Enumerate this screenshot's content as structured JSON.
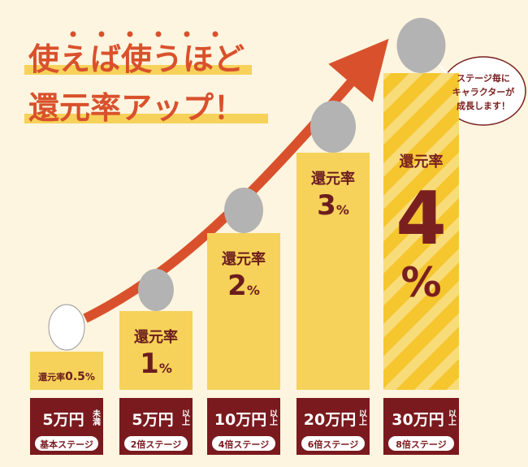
{
  "title": {
    "line1": "使えば使うほど",
    "line2": "還元率アップ！"
  },
  "bubble": {
    "lines": [
      "ステージ毎に",
      "キャラクターが",
      "成長します！"
    ]
  },
  "steps": [
    {
      "rate_label": "還元率",
      "rate": "0.5",
      "unit": "%",
      "amount": "5万円",
      "condition": "未満",
      "stage": "基本ステージ"
    },
    {
      "rate_label": "還元率",
      "rate": "1",
      "unit": "%",
      "amount": "5万円",
      "condition": "以上",
      "stage": "2倍ステージ"
    },
    {
      "rate_label": "還元率",
      "rate": "2",
      "unit": "%",
      "amount": "10万円",
      "condition": "以上",
      "stage": "4倍ステージ"
    },
    {
      "rate_label": "還元率",
      "rate": "3",
      "unit": "%",
      "amount": "20万円",
      "condition": "以上",
      "stage": "6倍ステージ"
    },
    {
      "rate_label": "還元率",
      "rate": "4",
      "unit": "%",
      "amount": "30万円",
      "condition": "以上",
      "stage": "8倍ステージ"
    }
  ]
}
